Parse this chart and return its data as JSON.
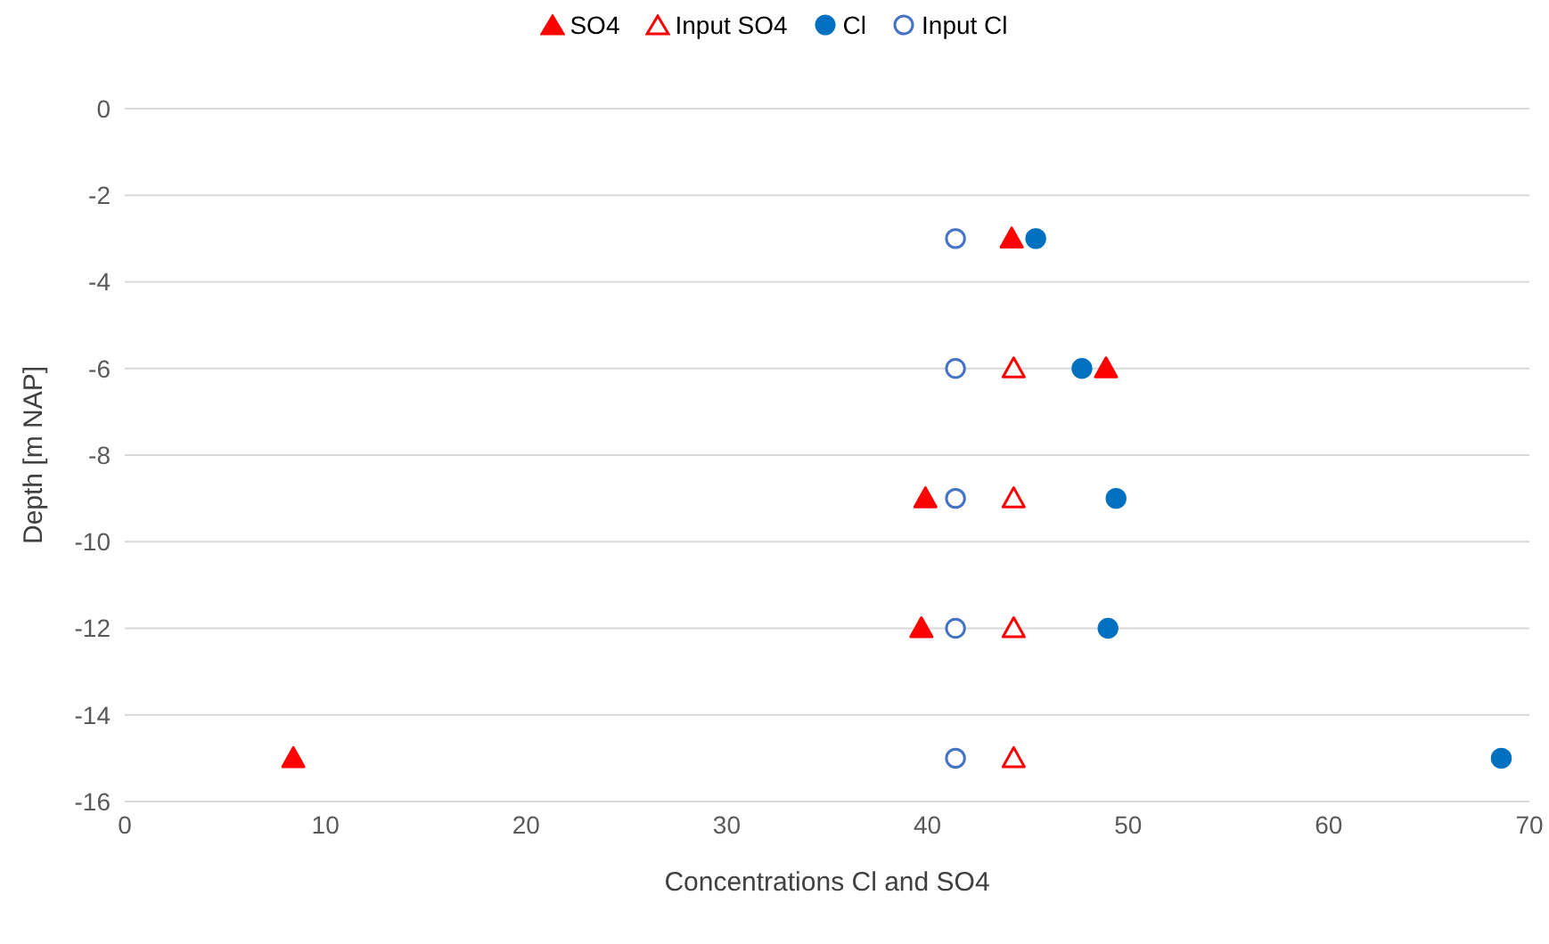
{
  "chart_data": {
    "type": "scatter",
    "xlabel": "Concentrations Cl and SO4",
    "ylabel": "Depth [m NAP]",
    "xlim": [
      0,
      70
    ],
    "xticks": [
      0,
      10,
      20,
      30,
      40,
      50,
      60,
      70
    ],
    "ylim": [
      -16,
      0
    ],
    "yticks": [
      -16,
      -14,
      -12,
      -10,
      -8,
      -6,
      -4,
      -2,
      0
    ],
    "grid": "y",
    "legend": "top",
    "series": [
      {
        "name": "SO4",
        "color": "#ff0000",
        "marker": "triangle",
        "x": [
          44.2,
          48.9,
          39.9,
          39.7,
          8.4
        ],
        "values": [
          -3,
          -6,
          -9,
          -12,
          -15
        ]
      },
      {
        "name": "Input SO4",
        "color": "#ff0000",
        "marker": "triangle",
        "x": [
          44.3,
          44.3,
          44.3,
          44.3
        ],
        "values": [
          -6,
          -9,
          -12,
          -15
        ]
      },
      {
        "name": "Cl",
        "color": "#0070c0",
        "marker": "circle",
        "x": [
          45.4,
          47.7,
          49.4,
          49.0,
          68.6
        ],
        "values": [
          -3,
          -6,
          -9,
          -12,
          -15
        ]
      },
      {
        "name": "Input Cl",
        "color": "#4472c4",
        "marker": "circle",
        "x": [
          41.4,
          41.4,
          41.4,
          41.4,
          41.4
        ],
        "values": [
          -3,
          -6,
          -9,
          -12,
          -15
        ]
      }
    ]
  }
}
